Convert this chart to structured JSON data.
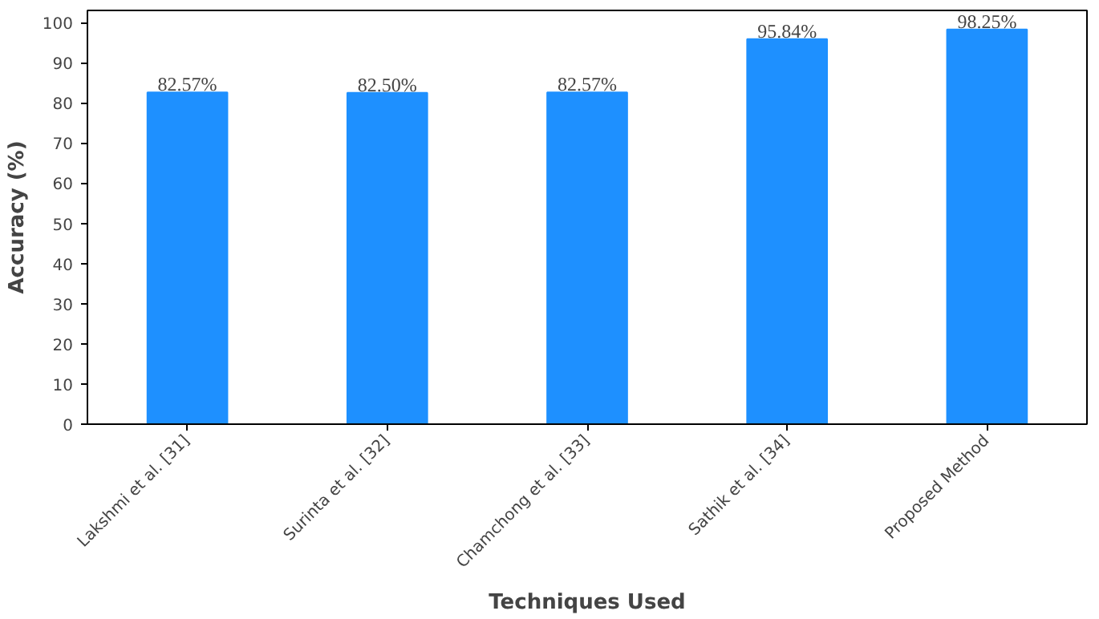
{
  "chart_data": {
    "type": "bar",
    "xlabel": "Techniques Used",
    "ylabel": "Accuracy (%)",
    "categories": [
      "Lakshmi et al. [31]",
      "Surinta et al. [32]",
      "Chamchong et al. [33]",
      "Sathik et al. [34]",
      "Proposed Method"
    ],
    "values": [
      82.57,
      82.5,
      82.57,
      95.84,
      98.25
    ],
    "value_labels": [
      "82.57%",
      "82.50%",
      "82.57%",
      "95.84%",
      "98.25%"
    ],
    "color": "#1e90ff",
    "ylim": [
      0,
      103
    ],
    "yticks": [
      0,
      10,
      20,
      30,
      40,
      50,
      60,
      70,
      80,
      90,
      100
    ],
    "grid": false
  }
}
